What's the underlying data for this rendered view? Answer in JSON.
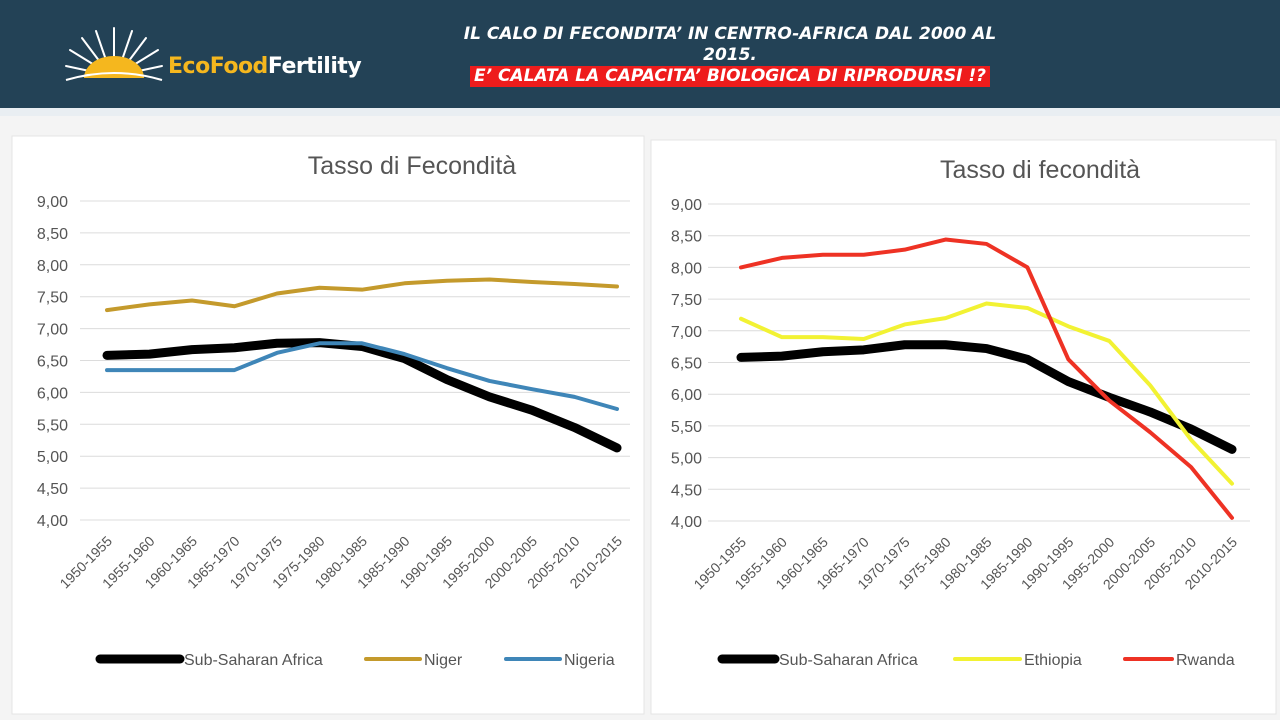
{
  "header": {
    "brand": {
      "eco": "Eco",
      "food": "Food",
      "fertility": "Fertility"
    },
    "title_line1": "IL CALO DI FECONDITA’ IN CENTRO-AFRICA DAL 2000  AL",
    "title_line2": "2015.",
    "subtitle": "E’ CALATA LA CAPACITA’ BIOLOGICA DI RIPRODURSI !?",
    "colors": {
      "background": "#234256",
      "highlight": "#ee1c1c",
      "brand_gold": "#f5b71e"
    }
  },
  "chart_data": [
    {
      "type": "line",
      "title": "Tasso di Fecondità",
      "categories": [
        "1950-1955",
        "1955-1960",
        "1960-1965",
        "1965-1970",
        "1970-1975",
        "1975-1980",
        "1980-1985",
        "1985-1990",
        "1990-1995",
        "1995-2000",
        "2000-2005",
        "2005-2010",
        "2010-2015"
      ],
      "ylim": [
        4.0,
        9.0
      ],
      "yticks": [
        "9,00",
        "8,50",
        "8,00",
        "7,50",
        "7,00",
        "6,50",
        "6,00",
        "5,50",
        "5,00",
        "4,50",
        "4,00"
      ],
      "grid": true,
      "legend_position": "bottom",
      "series": [
        {
          "name": "Sub-Saharan Africa",
          "color": "#000000",
          "width": 9,
          "values": [
            6.58,
            6.6,
            6.67,
            6.7,
            6.77,
            6.78,
            6.72,
            6.53,
            6.2,
            5.93,
            5.72,
            5.45,
            5.13
          ]
        },
        {
          "name": "Niger",
          "color": "#c49a2c",
          "width": 4,
          "values": [
            7.29,
            7.38,
            7.44,
            7.35,
            7.55,
            7.64,
            7.61,
            7.71,
            7.75,
            7.77,
            7.73,
            7.7,
            7.66
          ]
        },
        {
          "name": "Nigeria",
          "color": "#3f86b8",
          "width": 4,
          "values": [
            6.35,
            6.35,
            6.35,
            6.35,
            6.62,
            6.77,
            6.77,
            6.6,
            6.38,
            6.18,
            6.05,
            5.93,
            5.74
          ]
        }
      ]
    },
    {
      "type": "line",
      "title": "Tasso di fecondità",
      "categories": [
        "1950-1955",
        "1955-1960",
        "1960-1965",
        "1965-1970",
        "1970-1975",
        "1975-1980",
        "1980-1985",
        "1985-1990",
        "1990-1995",
        "1995-2000",
        "2000-2005",
        "2005-2010",
        "2010-2015"
      ],
      "ylim": [
        4.0,
        9.0
      ],
      "yticks": [
        "9,00",
        "8,50",
        "8,00",
        "7,50",
        "7,00",
        "6,50",
        "6,00",
        "5,50",
        "5,00",
        "4,50",
        "4,00"
      ],
      "grid": true,
      "legend_position": "bottom",
      "series": [
        {
          "name": "Sub-Saharan Africa",
          "color": "#000000",
          "width": 9,
          "values": [
            6.58,
            6.6,
            6.67,
            6.7,
            6.78,
            6.78,
            6.72,
            6.55,
            6.2,
            5.95,
            5.72,
            5.45,
            5.13
          ]
        },
        {
          "name": "Ethiopia",
          "color": "#f2f233",
          "width": 4,
          "values": [
            7.19,
            6.9,
            6.9,
            6.87,
            7.1,
            7.2,
            7.43,
            7.36,
            7.07,
            6.84,
            6.14,
            5.28,
            4.59
          ]
        },
        {
          "name": "Rwanda",
          "color": "#ee3224",
          "width": 4,
          "values": [
            8.0,
            8.15,
            8.2,
            8.2,
            8.28,
            8.44,
            8.37,
            8.0,
            6.55,
            5.9,
            5.4,
            4.85,
            4.05
          ]
        }
      ]
    }
  ]
}
